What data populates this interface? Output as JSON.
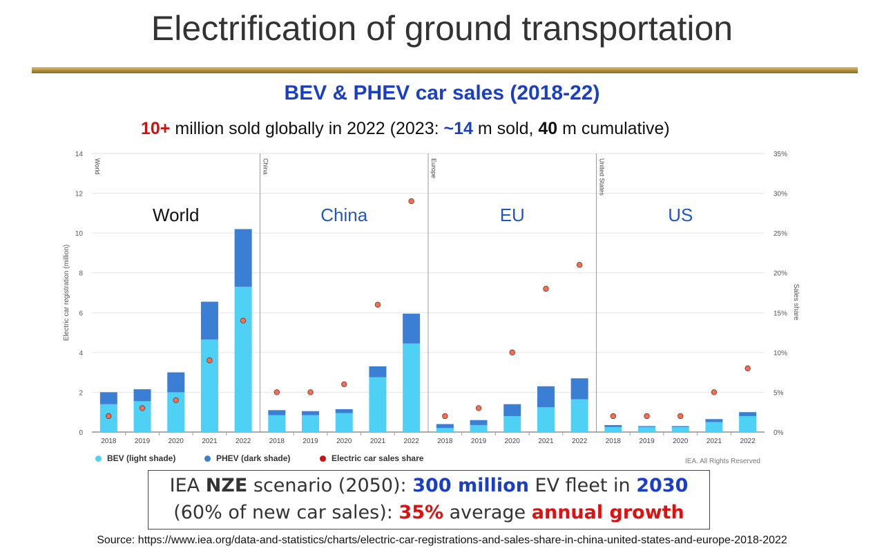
{
  "slide": {
    "title": "Electrification of ground transportation",
    "subtitle_parts": [
      "10+",
      " million sold globally in 2022 (2023: ",
      "~14",
      " m sold, ",
      "40",
      " m cumulative)"
    ],
    "nze_line1": [
      "IEA ",
      "NZE",
      " scenario (2050): ",
      "300 million",
      " EV fleet in ",
      "2030"
    ],
    "nze_line2": [
      "(60% of new car sales): ",
      "35%",
      " average ",
      "annual growth"
    ],
    "source": "Source: https://www.iea.org/data-and-statistics/charts/electric-car-registrations-and-sales-share-in-china-united-states-and-europe-2018-2022",
    "credit": "IEA. All Rights Reserved"
  },
  "chart_data": {
    "type": "bar",
    "title": "BEV & PHEV car sales (2018-22)",
    "ylabel": "Electric car registration (million)",
    "y2label": "Sales share",
    "ylim": [
      0,
      14
    ],
    "y2lim": [
      0,
      35
    ],
    "yticks": [
      "0",
      "2",
      "4",
      "6",
      "8",
      "10",
      "12",
      "14"
    ],
    "y2ticks": [
      "0%",
      "5%",
      "10%",
      "15%",
      "20%",
      "25%",
      "30%",
      "35%"
    ],
    "grid": true,
    "legend": "bottom-left",
    "legend_entries": [
      "BEV (light shade)",
      "PHEV (dark shade)",
      "Electric car sales share"
    ],
    "colors": {
      "bev": "#4fd0f5",
      "phev": "#3b7fd4",
      "share": "#e8735a",
      "share_stroke": "#8a2a1a",
      "panel_title_world": "#111111",
      "panel_title_other": "#1f57c9"
    },
    "panels": [
      {
        "label": "World",
        "title": "World",
        "categories": [
          "2018",
          "2019",
          "2020",
          "2021",
          "2022"
        ],
        "bev": [
          1.4,
          1.55,
          2.0,
          4.65,
          7.3
        ],
        "phev": [
          0.6,
          0.6,
          1.0,
          1.9,
          2.9
        ],
        "share": [
          2,
          3,
          4,
          9,
          14
        ]
      },
      {
        "label": "China",
        "title": "China",
        "categories": [
          "2018",
          "2019",
          "2020",
          "2021",
          "2022"
        ],
        "bev": [
          0.85,
          0.85,
          0.95,
          2.75,
          4.45
        ],
        "phev": [
          0.25,
          0.2,
          0.2,
          0.55,
          1.5
        ],
        "share": [
          5,
          5,
          6,
          16,
          29
        ]
      },
      {
        "label": "Europe",
        "title": "EU",
        "categories": [
          "2018",
          "2019",
          "2020",
          "2021",
          "2022"
        ],
        "bev": [
          0.2,
          0.35,
          0.8,
          1.25,
          1.65
        ],
        "phev": [
          0.2,
          0.25,
          0.6,
          1.05,
          1.05
        ],
        "share": [
          2,
          3,
          10,
          18,
          21
        ]
      },
      {
        "label": "United States",
        "title": "US",
        "categories": [
          "2018",
          "2019",
          "2020",
          "2021",
          "2022"
        ],
        "bev": [
          0.25,
          0.25,
          0.25,
          0.5,
          0.8
        ],
        "phev": [
          0.1,
          0.05,
          0.05,
          0.15,
          0.2
        ],
        "share": [
          2,
          2,
          2,
          5,
          8
        ]
      }
    ]
  }
}
